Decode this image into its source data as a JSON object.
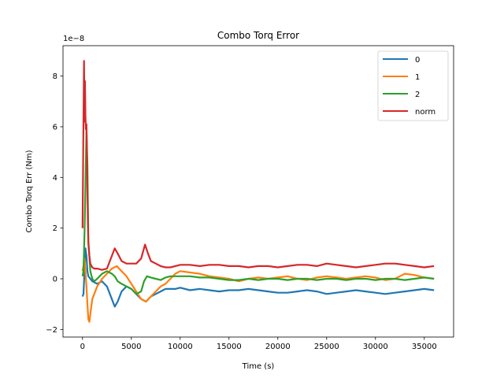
{
  "chart_data": {
    "type": "line",
    "title": "Combo Torq Error",
    "xlabel": "Time (s)",
    "ylabel": "Combo Torq Err (Nm)",
    "y_scale_label": "1e−8",
    "xlim": [
      -2000,
      38000
    ],
    "ylim": [
      -2.3,
      9.2
    ],
    "x_ticks": [
      0,
      5000,
      10000,
      15000,
      20000,
      25000,
      30000,
      35000
    ],
    "x_tick_labels": [
      "0",
      "5000",
      "10000",
      "15000",
      "20000",
      "25000",
      "30000",
      "35000"
    ],
    "y_ticks": [
      -2,
      0,
      2,
      4,
      6,
      8
    ],
    "y_tick_labels": [
      "−2",
      "0",
      "2",
      "4",
      "6",
      "8"
    ],
    "grid": false,
    "legend_position": "top-right",
    "series": [
      {
        "name": "0",
        "color": "#1f77b4",
        "x": [
          0,
          100,
          200,
          300,
          400,
          500,
          600,
          800,
          1000,
          1500,
          2000,
          2500,
          3000,
          3300,
          3600,
          4000,
          4500,
          5000,
          5500,
          6000,
          6500,
          7000,
          7500,
          8000,
          8500,
          9000,
          9500,
          10000,
          11000,
          12000,
          13000,
          14000,
          15000,
          16000,
          17000,
          18000,
          19000,
          20000,
          21000,
          22000,
          23000,
          24000,
          25000,
          26000,
          27000,
          28000,
          29000,
          30000,
          31000,
          32000,
          33000,
          34000,
          35000,
          36000
        ],
        "y": [
          -0.7,
          -0.6,
          0.3,
          1.2,
          0.9,
          0.3,
          0.1,
          0.0,
          -0.1,
          -0.2,
          -0.1,
          -0.3,
          -0.8,
          -1.1,
          -0.9,
          -0.5,
          -0.3,
          -0.4,
          -0.6,
          -0.8,
          -0.9,
          -0.7,
          -0.6,
          -0.5,
          -0.4,
          -0.4,
          -0.4,
          -0.35,
          -0.45,
          -0.4,
          -0.45,
          -0.5,
          -0.45,
          -0.45,
          -0.4,
          -0.45,
          -0.5,
          -0.55,
          -0.55,
          -0.5,
          -0.45,
          -0.5,
          -0.6,
          -0.55,
          -0.5,
          -0.45,
          -0.5,
          -0.55,
          -0.6,
          -0.55,
          -0.5,
          -0.45,
          -0.4,
          -0.45
        ]
      },
      {
        "name": "1",
        "color": "#ff7f0e",
        "x": [
          0,
          100,
          200,
          300,
          400,
          500,
          600,
          700,
          800,
          1000,
          1200,
          1500,
          2000,
          2500,
          3000,
          3500,
          4000,
          4500,
          5000,
          5500,
          6000,
          6500,
          7000,
          7500,
          8000,
          8500,
          9000,
          9500,
          10000,
          11000,
          12000,
          13000,
          14000,
          15000,
          16000,
          17000,
          18000,
          19000,
          20000,
          21000,
          22000,
          23000,
          24000,
          25000,
          26000,
          27000,
          28000,
          29000,
          30000,
          31000,
          32000,
          33000,
          34000,
          35000,
          36000
        ],
        "y": [
          0.3,
          0.5,
          0.8,
          0.3,
          -0.3,
          -1.0,
          -1.6,
          -1.7,
          -1.4,
          -0.8,
          -0.6,
          -0.3,
          0.0,
          0.2,
          0.4,
          0.5,
          0.3,
          0.1,
          -0.2,
          -0.5,
          -0.8,
          -0.9,
          -0.7,
          -0.5,
          -0.3,
          -0.2,
          0.0,
          0.2,
          0.3,
          0.25,
          0.2,
          0.1,
          0.05,
          0.0,
          -0.1,
          0.0,
          0.05,
          0.0,
          0.05,
          0.1,
          0.0,
          -0.05,
          0.05,
          0.1,
          0.05,
          0.0,
          0.05,
          0.1,
          0.05,
          -0.05,
          0.0,
          0.2,
          0.15,
          0.05,
          0.0
        ]
      },
      {
        "name": "2",
        "color": "#2ca02c",
        "x": [
          0,
          100,
          200,
          300,
          400,
          500,
          600,
          800,
          1000,
          1200,
          1500,
          2000,
          2500,
          3000,
          3300,
          3600,
          4000,
          4500,
          5000,
          5500,
          6000,
          6300,
          6600,
          7000,
          7500,
          8000,
          8500,
          9000,
          9500,
          10000,
          11000,
          12000,
          13000,
          14000,
          15000,
          16000,
          17000,
          18000,
          19000,
          20000,
          21000,
          22000,
          23000,
          24000,
          25000,
          26000,
          27000,
          28000,
          29000,
          30000,
          31000,
          32000,
          33000,
          34000,
          35000,
          36000
        ],
        "y": [
          0.1,
          0.3,
          1.8,
          3.6,
          5.9,
          4.5,
          1.5,
          0.3,
          0.0,
          -0.1,
          0.0,
          0.2,
          0.3,
          0.2,
          0.1,
          -0.1,
          -0.2,
          -0.3,
          -0.4,
          -0.6,
          -0.5,
          -0.1,
          0.1,
          0.05,
          0.0,
          -0.05,
          0.05,
          0.1,
          0.1,
          0.1,
          0.1,
          0.05,
          0.05,
          0.0,
          -0.05,
          -0.05,
          0.0,
          -0.05,
          0.0,
          0.0,
          -0.05,
          0.0,
          0.0,
          -0.05,
          0.0,
          0.0,
          -0.05,
          0.0,
          0.0,
          -0.05,
          0.0,
          0.0,
          -0.05,
          0.0,
          0.05,
          0.0
        ]
      },
      {
        "name": "norm",
        "color": "#d62728",
        "x": [
          0,
          50,
          100,
          150,
          200,
          250,
          300,
          350,
          400,
          450,
          500,
          550,
          600,
          700,
          800,
          1000,
          1200,
          1500,
          2000,
          2500,
          3000,
          3300,
          3600,
          4000,
          4500,
          5000,
          5500,
          6000,
          6400,
          6700,
          7000,
          7500,
          8000,
          8500,
          9000,
          9500,
          10000,
          11000,
          12000,
          13000,
          14000,
          15000,
          16000,
          17000,
          18000,
          19000,
          20000,
          21000,
          22000,
          23000,
          24000,
          25000,
          26000,
          27000,
          28000,
          29000,
          30000,
          31000,
          32000,
          33000,
          34000,
          35000,
          36000
        ],
        "y": [
          2.0,
          4.0,
          6.3,
          8.6,
          6.2,
          7.8,
          6.4,
          5.9,
          6.1,
          5.0,
          3.5,
          2.2,
          1.4,
          0.9,
          0.6,
          0.45,
          0.4,
          0.4,
          0.35,
          0.4,
          0.9,
          1.2,
          1.0,
          0.7,
          0.6,
          0.6,
          0.6,
          0.8,
          1.35,
          1.0,
          0.7,
          0.6,
          0.5,
          0.45,
          0.45,
          0.5,
          0.55,
          0.55,
          0.5,
          0.55,
          0.55,
          0.5,
          0.5,
          0.45,
          0.5,
          0.5,
          0.45,
          0.5,
          0.55,
          0.55,
          0.5,
          0.6,
          0.55,
          0.5,
          0.45,
          0.5,
          0.55,
          0.6,
          0.6,
          0.55,
          0.5,
          0.45,
          0.5
        ]
      }
    ]
  }
}
